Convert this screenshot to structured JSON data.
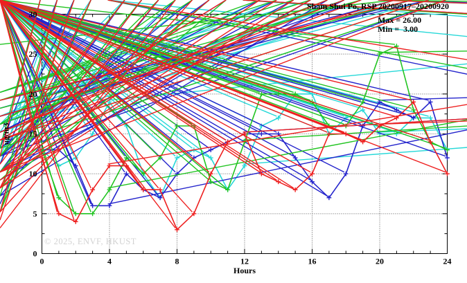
{
  "page": {
    "title": "Sham Shui Po, RSP 20200917–20200920"
  },
  "annotations": {
    "max_label": "Max = 26.00",
    "min_label": "Min =  3.00"
  },
  "watermark": "© 2025, ENVF, HKUST",
  "chart_data": {
    "type": "line",
    "title": "Sham Shui Po, RSP 20200917–20200920",
    "xlabel": "Hours",
    "ylabel": "ug/m3",
    "xlim": [
      0,
      24
    ],
    "ylim": [
      0,
      30
    ],
    "x_ticks": [
      0,
      4,
      8,
      12,
      16,
      20,
      24
    ],
    "y_ticks": [
      0,
      5,
      10,
      15,
      20,
      25,
      30
    ],
    "x_minor_step": 1,
    "y_minor_step": 2.5,
    "grid": true,
    "legend": "none",
    "max_value": 26.0,
    "min_value": 3.0,
    "x": [
      0,
      1,
      2,
      3,
      4,
      5,
      6,
      7,
      8,
      9,
      10,
      11,
      12,
      13,
      14,
      15,
      16,
      17,
      18,
      19,
      20,
      21,
      22,
      23,
      24
    ],
    "series": [
      {
        "name": "cyan-series",
        "color": "#26d8d8",
        "values": [
          13,
          11,
          12,
          15,
          19,
          16,
          10,
          7,
          12,
          13,
          12,
          8,
          11,
          16,
          17,
          20,
          20,
          15,
          17,
          18,
          15,
          15,
          17,
          17,
          13
        ]
      },
      {
        "name": "blue-series",
        "color": "#2424cc",
        "values": [
          13,
          13,
          11,
          6,
          6,
          10,
          8,
          7,
          10,
          12,
          13,
          14,
          15,
          15,
          15,
          12,
          9,
          7,
          10,
          16,
          19,
          18,
          17,
          19,
          12
        ]
      },
      {
        "name": "green-series",
        "color": "#22c422",
        "values": [
          13,
          7,
          5,
          5,
          8,
          12,
          10,
          12,
          16,
          16,
          9,
          8,
          14,
          20,
          20,
          20,
          19,
          16,
          16,
          19,
          25,
          26,
          18,
          14,
          13
        ]
      },
      {
        "name": "red-series",
        "color": "#ee2020",
        "values": [
          12,
          5,
          4,
          8,
          11,
          11,
          8,
          8,
          3,
          5,
          10,
          14,
          15,
          10,
          9,
          8,
          10,
          15,
          15,
          14,
          16,
          17,
          19,
          14,
          10
        ]
      }
    ]
  }
}
